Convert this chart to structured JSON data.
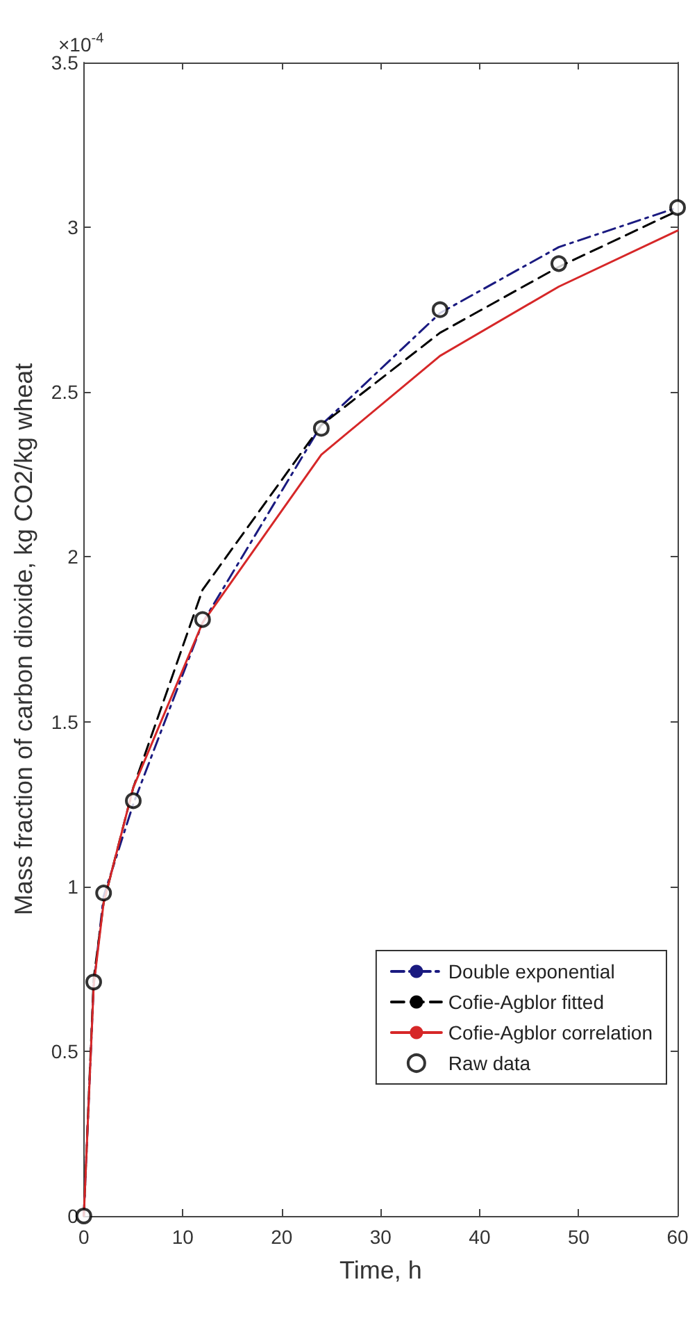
{
  "chart_data": {
    "type": "line",
    "xlabel": "Time, h",
    "ylabel": "Mass fraction of carbon dioxide, kg CO2/kg wheat",
    "annotations": [
      "×10$^{-4}$"
    ],
    "x": [
      0,
      1,
      2,
      5,
      12,
      24,
      36,
      48,
      60
    ],
    "series": [
      {
        "name": "Double exponential",
        "color": "#1a1a80",
        "line_style": "dashdot",
        "marker": "none",
        "values": [
          0,
          0.7,
          0.97,
          1.25,
          1.8,
          2.4,
          2.74,
          2.94,
          3.06
        ]
      },
      {
        "name": "Cofie-Agblor fitted",
        "color": "#000000",
        "line_style": "dashed",
        "marker": "none",
        "values": [
          0,
          0.72,
          0.95,
          1.3,
          1.9,
          2.4,
          2.68,
          2.88,
          3.05
        ]
      },
      {
        "name": "Cofie-Agblor correlation",
        "color": "#d62728",
        "line_style": "solid",
        "marker": "none",
        "values": [
          0,
          0.7,
          0.95,
          1.3,
          1.8,
          2.31,
          2.61,
          2.82,
          2.99
        ]
      },
      {
        "name": "Raw data",
        "type": "scatter",
        "color": "#000000",
        "marker": "circle",
        "values": [
          0,
          0.71,
          0.98,
          1.26,
          1.81,
          2.39,
          2.75,
          2.89,
          3.06
        ]
      }
    ],
    "xlim": [
      0,
      60
    ],
    "xticks": [
      0,
      10,
      20,
      30,
      40,
      50,
      60
    ],
    "ylim": [
      0,
      3.5
    ],
    "yticks": [
      0,
      0.5,
      1,
      1.5,
      2,
      2.5,
      3,
      3.5
    ],
    "grid": false,
    "legend": "bottom right"
  }
}
